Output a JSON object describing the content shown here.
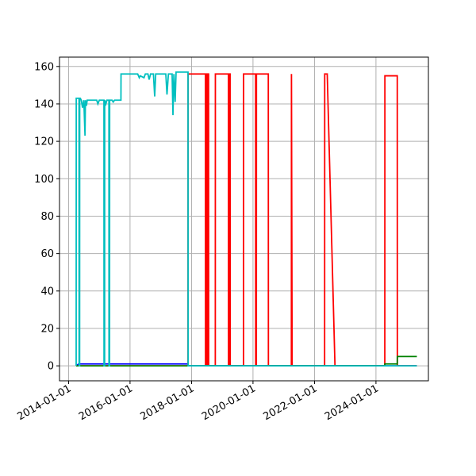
{
  "chart_data": {
    "type": "line",
    "x_type": "date",
    "xlim": [
      "2013-09-15",
      "2025-09-15"
    ],
    "ylim": [
      -8,
      165
    ],
    "grid": true,
    "x_ticks": [
      "2014-01-01",
      "2016-01-01",
      "2018-01-01",
      "2020-01-01",
      "2022-01-01",
      "2024-01-01"
    ],
    "y_ticks": [
      0,
      20,
      40,
      60,
      80,
      100,
      120,
      140,
      160
    ],
    "series": [
      {
        "color": "#0000ff",
        "points": [
          [
            "2014-04-01",
            0
          ],
          [
            "2014-05-01",
            1
          ],
          [
            "2017-11-20",
            1
          ],
          [
            "2017-11-21",
            0
          ],
          [
            "2025-05-01",
            0
          ]
        ]
      },
      {
        "color": "#ff0000",
        "points": [
          [
            "2014-04-01",
            0
          ],
          [
            "2017-11-20",
            0
          ],
          [
            "2017-11-21",
            156
          ],
          [
            "2018-06-15",
            156
          ],
          [
            "2018-06-16",
            0
          ],
          [
            "2018-06-25",
            0
          ],
          [
            "2018-06-26",
            156
          ],
          [
            "2018-07-05",
            156
          ],
          [
            "2018-07-06",
            0
          ],
          [
            "2018-07-12",
            0
          ],
          [
            "2018-07-13",
            156
          ],
          [
            "2018-07-22",
            156
          ],
          [
            "2018-07-23",
            0
          ],
          [
            "2018-10-10",
            0
          ],
          [
            "2018-10-11",
            156
          ],
          [
            "2019-03-15",
            156
          ],
          [
            "2019-03-16",
            0
          ],
          [
            "2019-03-25",
            0
          ],
          [
            "2019-03-26",
            156
          ],
          [
            "2019-04-04",
            156
          ],
          [
            "2019-04-05",
            0
          ],
          [
            "2019-09-10",
            0
          ],
          [
            "2019-09-11",
            156
          ],
          [
            "2020-02-01",
            156
          ],
          [
            "2020-02-02",
            0
          ],
          [
            "2020-02-10",
            0
          ],
          [
            "2020-02-11",
            156
          ],
          [
            "2020-07-01",
            156
          ],
          [
            "2020-07-02",
            0
          ],
          [
            "2021-04-01",
            0
          ],
          [
            "2021-04-02",
            156
          ],
          [
            "2021-04-10",
            0
          ],
          [
            "2022-05-01",
            0
          ],
          [
            "2022-05-02",
            156
          ],
          [
            "2022-06-01",
            156
          ],
          [
            "2022-09-01",
            0
          ],
          [
            "2024-04-15",
            0
          ],
          [
            "2024-04-16",
            155
          ],
          [
            "2024-09-10",
            155
          ],
          [
            "2024-09-11",
            0
          ],
          [
            "2025-05-01",
            0
          ]
        ]
      },
      {
        "color": "#008000",
        "points": [
          [
            "2014-04-01",
            0
          ],
          [
            "2024-04-15",
            0
          ],
          [
            "2024-04-16",
            1
          ],
          [
            "2024-09-10",
            1
          ],
          [
            "2024-09-11",
            5
          ],
          [
            "2025-05-01",
            5
          ]
        ]
      },
      {
        "color": "#00bfbf",
        "points": [
          [
            "2014-04-01",
            0
          ],
          [
            "2014-04-02",
            143
          ],
          [
            "2014-05-05",
            143
          ],
          [
            "2014-05-06",
            0
          ],
          [
            "2014-05-12",
            0
          ],
          [
            "2014-05-13",
            143
          ],
          [
            "2014-05-20",
            143
          ],
          [
            "2014-06-01",
            142
          ],
          [
            "2014-06-15",
            138
          ],
          [
            "2014-07-01",
            142
          ],
          [
            "2014-07-15",
            123
          ],
          [
            "2014-07-20",
            142
          ],
          [
            "2014-08-01",
            139
          ],
          [
            "2014-08-10",
            142
          ],
          [
            "2014-12-01",
            142
          ],
          [
            "2014-12-15",
            140
          ],
          [
            "2015-01-01",
            142
          ],
          [
            "2015-02-25",
            142
          ],
          [
            "2015-02-26",
            0
          ],
          [
            "2015-03-05",
            0
          ],
          [
            "2015-03-06",
            142
          ],
          [
            "2015-03-20",
            140
          ],
          [
            "2015-04-01",
            142
          ],
          [
            "2015-04-25",
            142
          ],
          [
            "2015-04-26",
            0
          ],
          [
            "2015-05-03",
            0
          ],
          [
            "2015-05-04",
            142
          ],
          [
            "2015-06-01",
            142
          ],
          [
            "2015-06-15",
            141
          ],
          [
            "2015-07-01",
            142
          ],
          [
            "2015-09-15",
            142
          ],
          [
            "2015-09-16",
            156
          ],
          [
            "2016-04-01",
            156
          ],
          [
            "2016-04-20",
            154
          ],
          [
            "2016-05-01",
            155
          ],
          [
            "2016-06-15",
            154
          ],
          [
            "2016-07-01",
            156
          ],
          [
            "2016-08-01",
            156
          ],
          [
            "2016-08-15",
            153
          ],
          [
            "2016-09-01",
            156
          ],
          [
            "2016-10-05",
            156
          ],
          [
            "2016-10-20",
            144
          ],
          [
            "2016-11-01",
            156
          ],
          [
            "2017-03-01",
            156
          ],
          [
            "2017-03-15",
            145
          ],
          [
            "2017-04-01",
            156
          ],
          [
            "2017-05-15",
            156
          ],
          [
            "2017-05-25",
            134
          ],
          [
            "2017-06-05",
            156
          ],
          [
            "2017-06-20",
            141
          ],
          [
            "2017-07-01",
            157
          ],
          [
            "2017-11-20",
            157
          ],
          [
            "2017-11-21",
            0
          ],
          [
            "2025-05-01",
            0
          ]
        ]
      }
    ]
  }
}
